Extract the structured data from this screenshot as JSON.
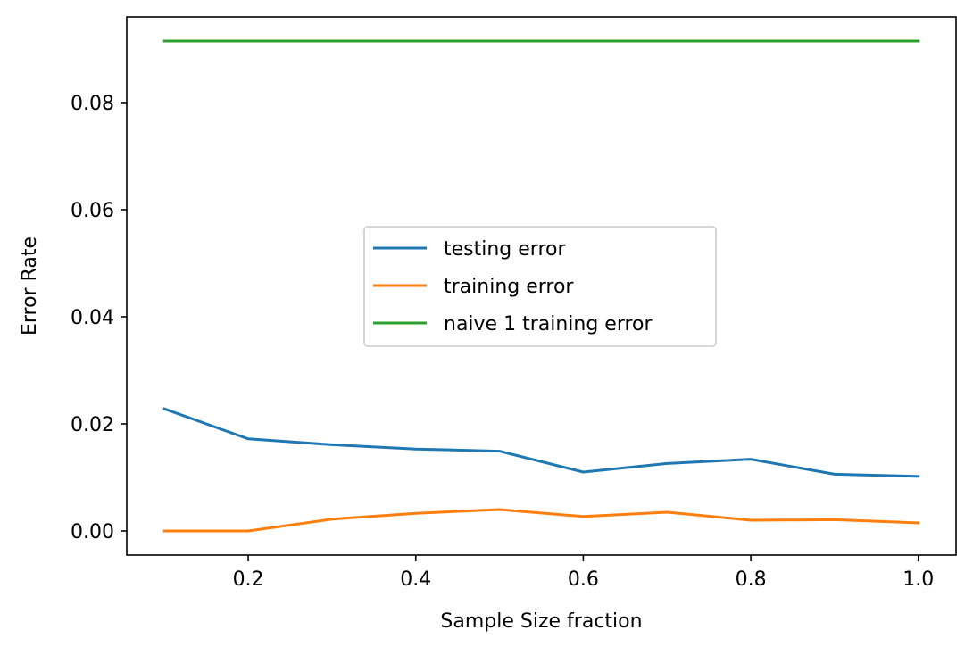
{
  "chart_data": {
    "type": "line",
    "title": "",
    "xlabel": "Sample Size fraction",
    "ylabel": "Error Rate",
    "xlim": [
      0.055,
      1.045
    ],
    "ylim": [
      -0.0045,
      0.096
    ],
    "xticks": [
      0.2,
      0.4,
      0.6,
      0.8,
      1.0
    ],
    "xtick_labels": [
      "0.2",
      "0.4",
      "0.6",
      "0.8",
      "1.0"
    ],
    "yticks": [
      0.0,
      0.02,
      0.04,
      0.06,
      0.08
    ],
    "ytick_labels": [
      "0.00",
      "0.02",
      "0.04",
      "0.06",
      "0.08"
    ],
    "grid": false,
    "legend_position": "center",
    "x": [
      0.1,
      0.2,
      0.3,
      0.4,
      0.5,
      0.6,
      0.7,
      0.8,
      0.9,
      1.0
    ],
    "series": [
      {
        "name": "testing error",
        "color": "#1f77b4",
        "values": [
          0.0228,
          0.0172,
          0.0161,
          0.0153,
          0.0149,
          0.011,
          0.0126,
          0.0134,
          0.0106,
          0.0102
        ]
      },
      {
        "name": "training error",
        "color": "#ff7f0e",
        "values": [
          0.0,
          0.0,
          0.0022,
          0.0033,
          0.004,
          0.0027,
          0.0035,
          0.002,
          0.0021,
          0.0015
        ]
      },
      {
        "name": "naive 1 training error",
        "color": "#2ca02c",
        "values": [
          0.0915,
          0.0915,
          0.0915,
          0.0915,
          0.0915,
          0.0915,
          0.0915,
          0.0915,
          0.0915,
          0.0915
        ]
      }
    ]
  }
}
